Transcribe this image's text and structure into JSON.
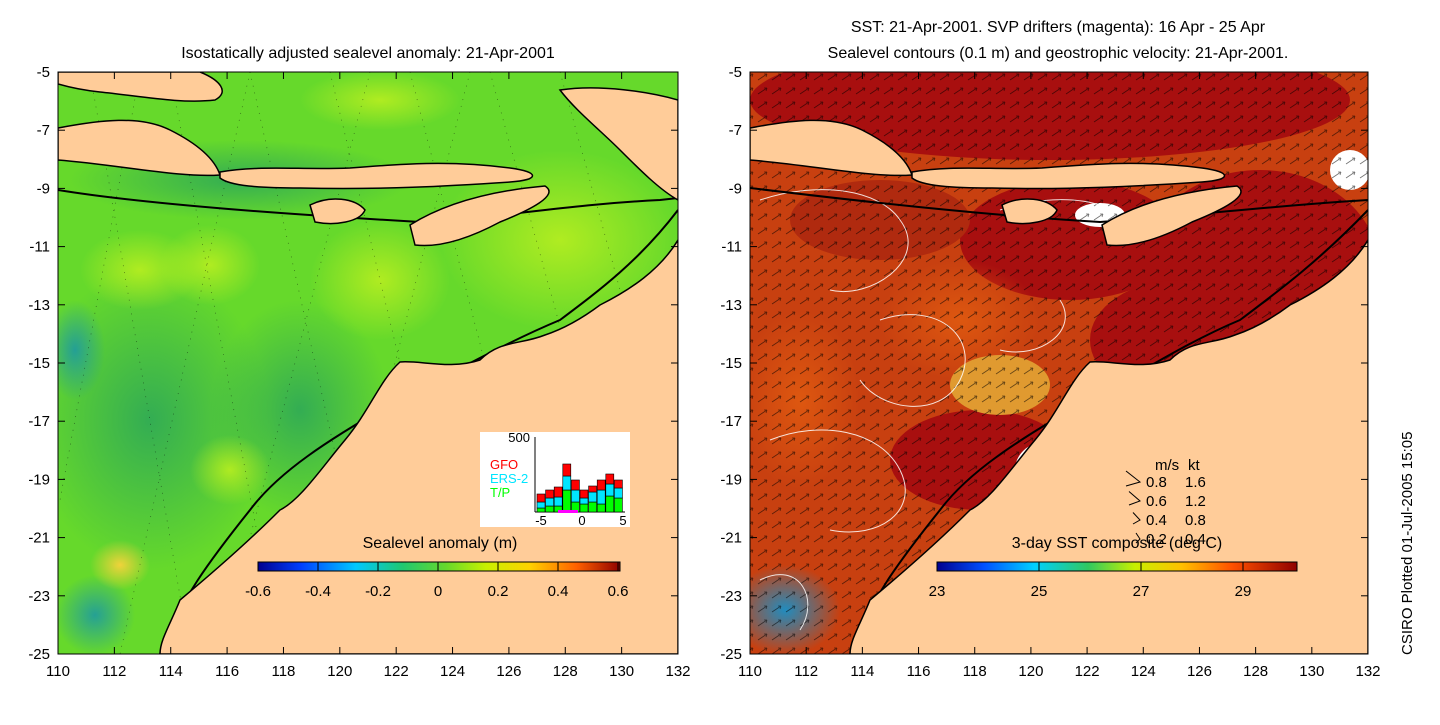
{
  "left_panel": {
    "title": "Isostatically adjusted sealevel anomaly: 21-Apr-2001",
    "colorbar": {
      "label": "Sealevel anomaly (m)",
      "ticks": [
        "-0.6",
        "-0.4",
        "-0.2",
        "0",
        "0.2",
        "0.4",
        "0.6"
      ]
    },
    "inset": {
      "y_max_label": "500",
      "legend": [
        {
          "name": "GFO",
          "color": "#ff0000"
        },
        {
          "name": "ERS-2",
          "color": "#00e5ff"
        },
        {
          "name": "T/P",
          "color": "#00ff00"
        }
      ],
      "x_ticks": [
        "-5",
        "0",
        "5"
      ]
    }
  },
  "right_panel": {
    "title_line1": "SST: 21-Apr-2001. SVP drifters (magenta): 16 Apr - 25 Apr",
    "title_line2": "Sealevel contours (0.1 m) and geostrophic velocity: 21-Apr-2001.",
    "colorbar": {
      "label": "3-day SST composite (deg C)",
      "ticks": [
        "23",
        "25",
        "27",
        "29"
      ]
    },
    "velocity_key": {
      "header_ms": "m/s",
      "header_kt": "kt",
      "rows": [
        {
          "ms": "0.8",
          "kt": "1.6"
        },
        {
          "ms": "0.6",
          "kt": "1.2"
        },
        {
          "ms": "0.4",
          "kt": "0.8"
        },
        {
          "ms": "0.2",
          "kt": "0.4"
        }
      ]
    }
  },
  "y_ticks": [
    "-5",
    "-7",
    "-9",
    "-11",
    "-13",
    "-15",
    "-17",
    "-19",
    "-21",
    "-23",
    "-25"
  ],
  "x_ticks": [
    "110",
    "112",
    "114",
    "116",
    "118",
    "120",
    "122",
    "124",
    "126",
    "128",
    "130",
    "132"
  ],
  "credit": "CSIRO Plotted 01-Jul-2005 15:05",
  "colors": {
    "land": "#ffcc99",
    "sla_ocean": "#66d92b",
    "sst_ocean": "#c84010",
    "sst_hot": "#a80f0f"
  }
}
